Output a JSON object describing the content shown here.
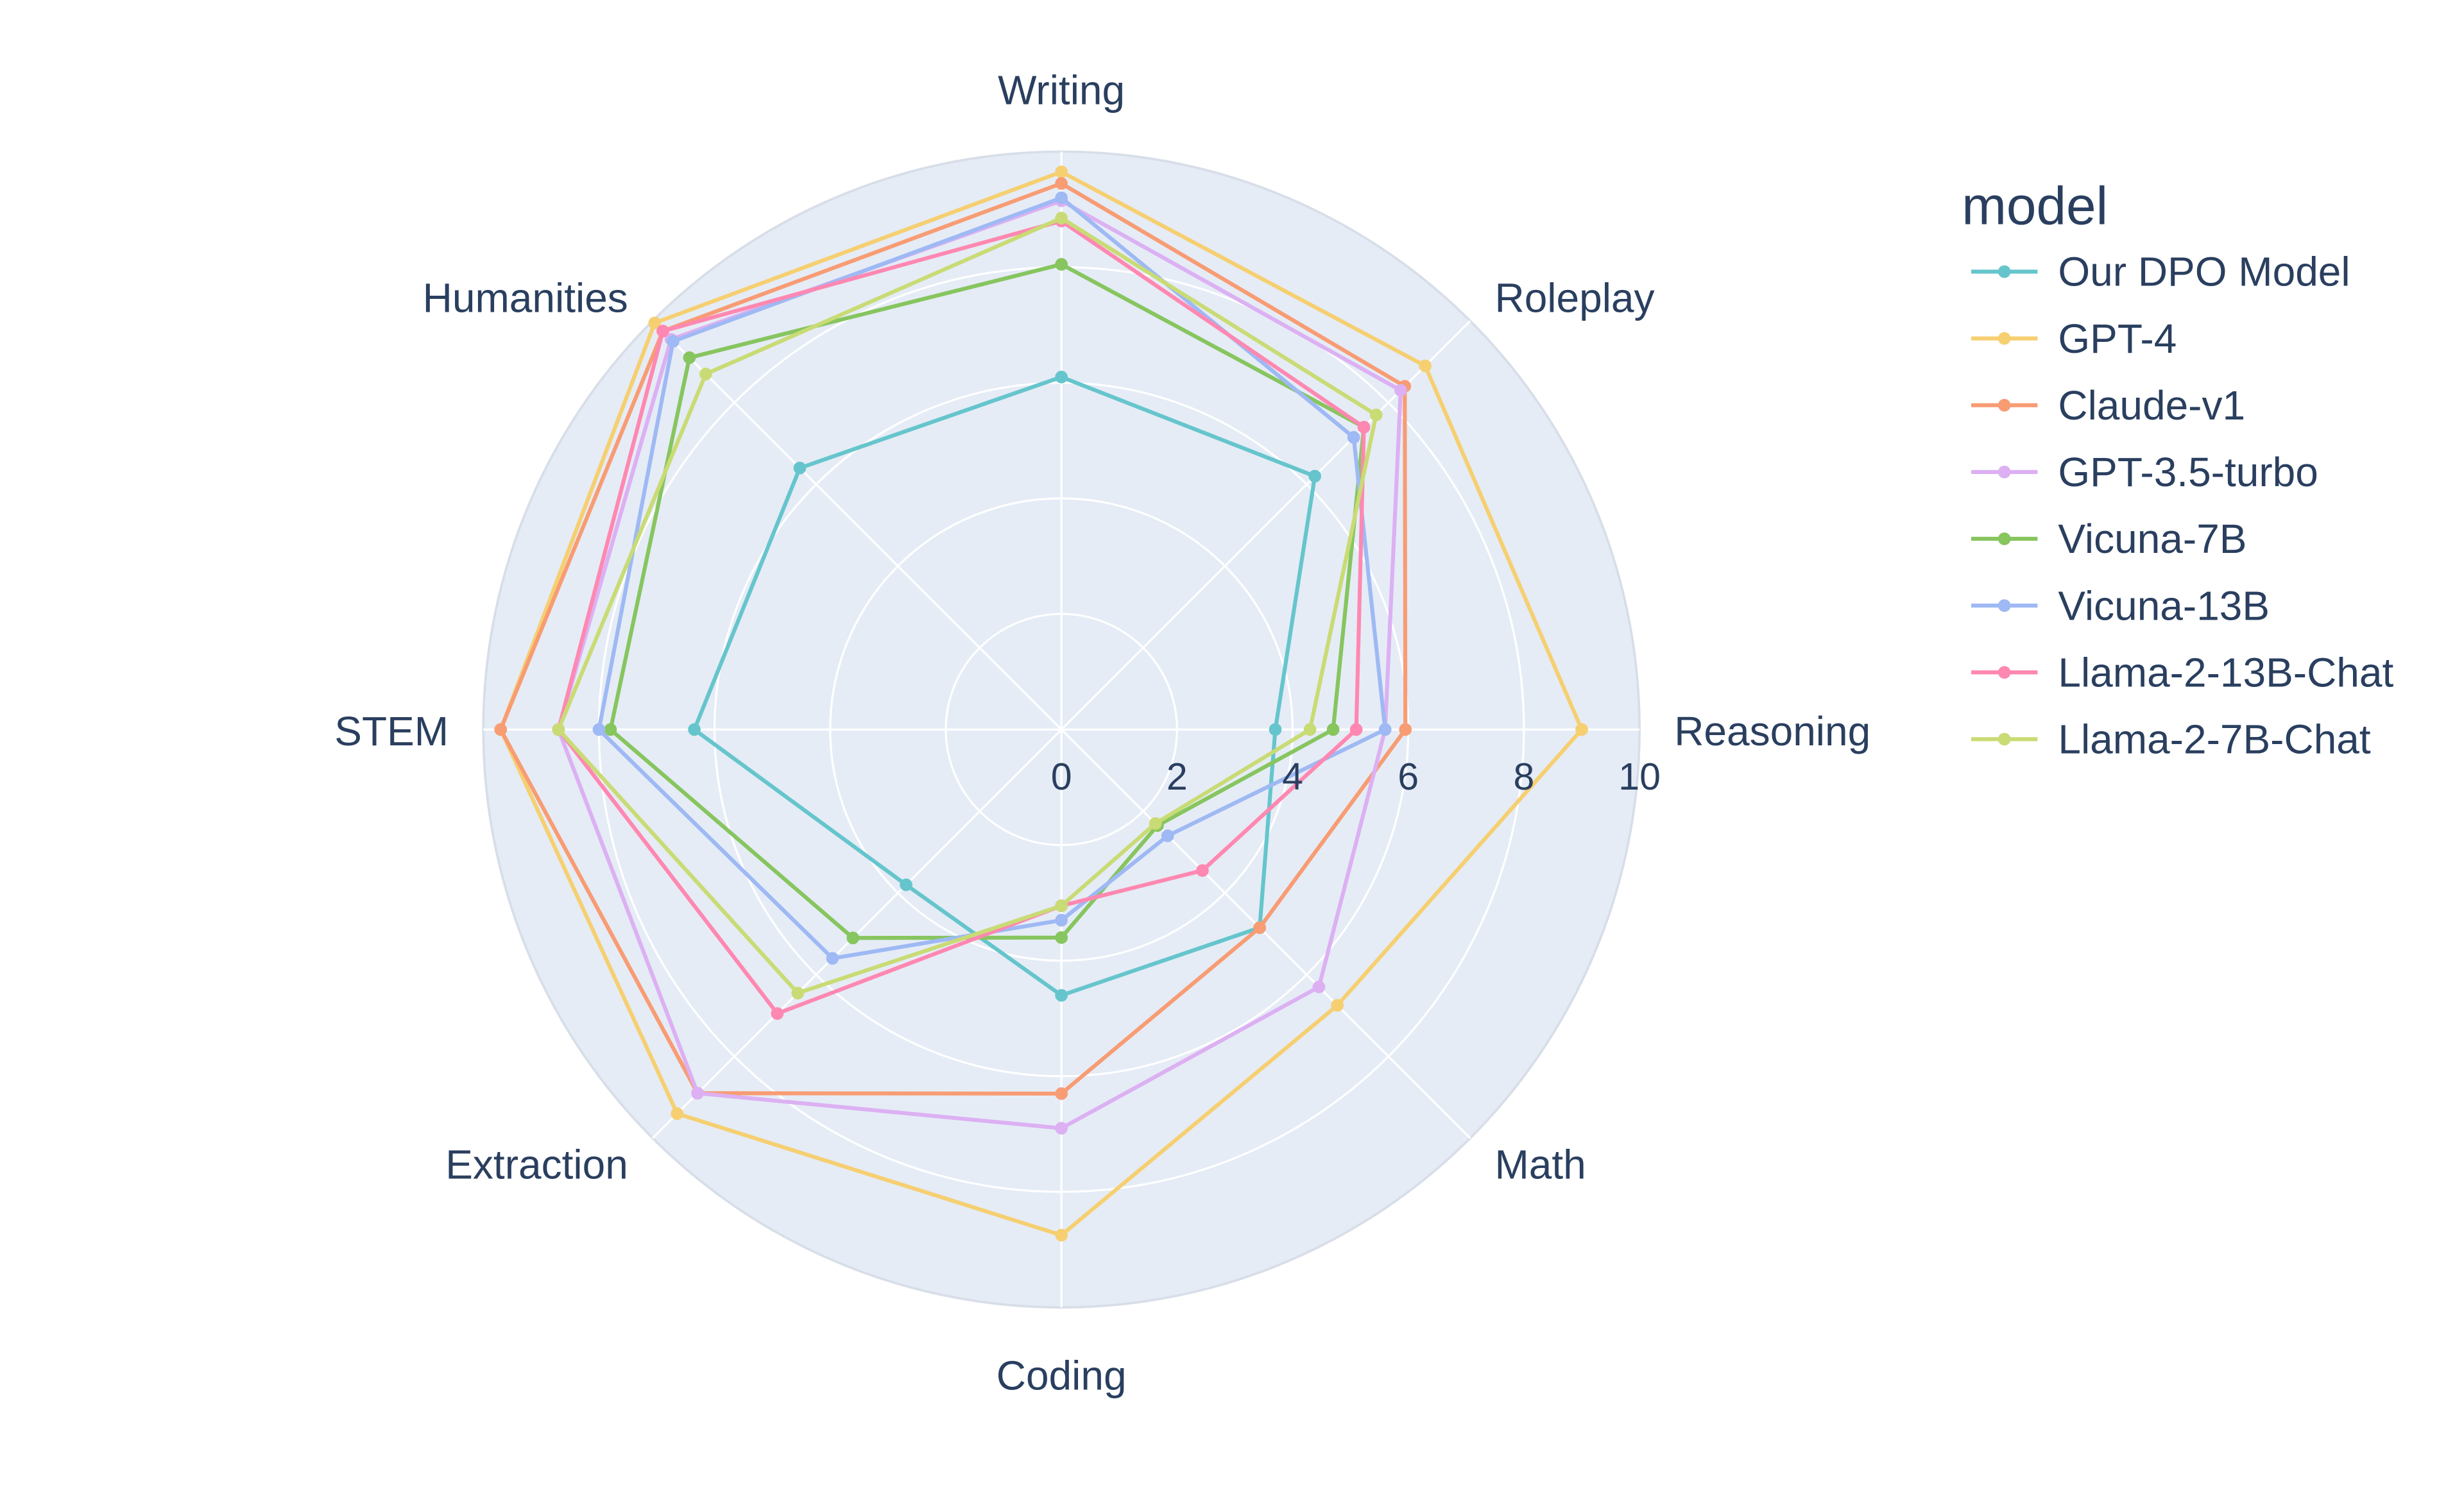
{
  "chart_data": {
    "type": "radar",
    "categories": [
      "Writing",
      "Roleplay",
      "Reasoning",
      "Math",
      "Coding",
      "Extraction",
      "STEM",
      "Humanities"
    ],
    "radial_range": [
      0,
      10
    ],
    "radial_ticks": [
      "0",
      "2",
      "4",
      "6",
      "8",
      "10"
    ],
    "grid": true,
    "legend": {
      "title": "model",
      "placement": "right"
    },
    "background_color": "#E5ECF6",
    "series": [
      {
        "name": "Our DPO Model",
        "color": "#66C5CC",
        "values": [
          6.1,
          6.2,
          3.7,
          4.85,
          4.6,
          3.8,
          6.35,
          6.4
        ]
      },
      {
        "name": "GPT-4",
        "color": "#F6CF71",
        "values": [
          9.65,
          8.9,
          9.0,
          6.75,
          8.75,
          9.4,
          9.7,
          9.95
        ]
      },
      {
        "name": "Claude-v1",
        "color": "#F89C74",
        "values": [
          9.45,
          8.4,
          5.95,
          4.85,
          6.3,
          8.9,
          9.7,
          9.75
        ]
      },
      {
        "name": "GPT-3.5-turbo",
        "color": "#DCB0F2",
        "values": [
          9.15,
          8.3,
          5.6,
          6.3,
          6.9,
          8.9,
          8.7,
          9.55
        ]
      },
      {
        "name": "Vicuna-7B",
        "color": "#87C55F",
        "values": [
          8.05,
          7.4,
          4.7,
          2.35,
          3.6,
          5.1,
          7.8,
          9.1
        ]
      },
      {
        "name": "Vicuna-13B",
        "color": "#9EB9F3",
        "values": [
          9.2,
          7.15,
          5.6,
          2.6,
          3.3,
          5.6,
          8.0,
          9.5
        ]
      },
      {
        "name": "Llama-2-13B-Chat",
        "color": "#FE88B1",
        "values": [
          8.8,
          7.4,
          5.1,
          3.45,
          3.05,
          6.95,
          8.7,
          9.75
        ]
      },
      {
        "name": "Llama-2-7B-Chat",
        "color": "#C9DB74",
        "values": [
          8.85,
          7.7,
          4.3,
          2.3,
          3.05,
          6.45,
          8.7,
          8.7
        ]
      }
    ]
  }
}
